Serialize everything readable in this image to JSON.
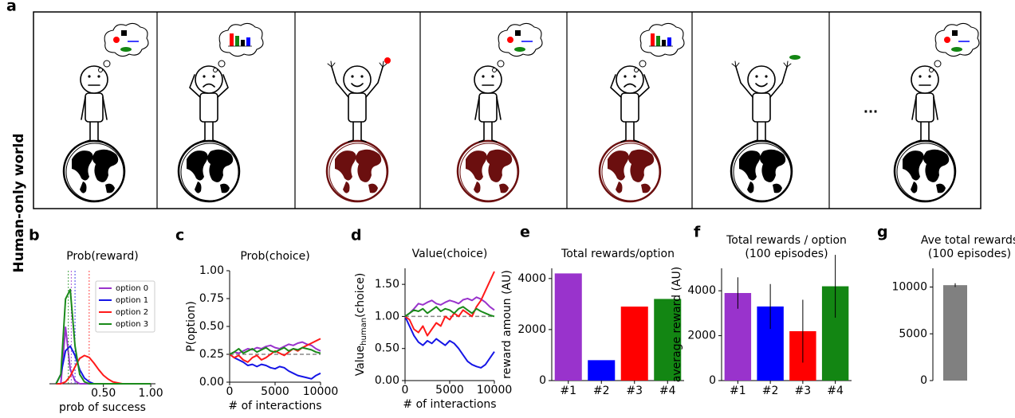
{
  "panel_labels": [
    "a",
    "b",
    "c",
    "d",
    "e",
    "f",
    "g"
  ],
  "side_label": "Human-only world",
  "ellipsis": "...",
  "chart_data": [
    {
      "type": "line",
      "title": "Prob(reward)",
      "xlabel": "prob of success",
      "x": [
        0,
        0.05,
        0.1,
        0.15,
        0.2,
        0.25,
        0.3,
        0.35,
        0.4,
        0.45,
        0.5,
        0.55,
        0.6,
        0.65,
        0.7,
        0.75,
        0.8,
        0.85,
        0.9,
        0.95,
        1.0
      ],
      "xlim": [
        -0.07,
        1.05
      ],
      "ylim": [
        0,
        12
      ],
      "xticks": [
        {
          "value": 0.5,
          "label": "0.50"
        },
        {
          "value": 1.0,
          "label": "1.00"
        }
      ],
      "legend": "upper right",
      "series": [
        {
          "name": "option 0",
          "color": "#9933cc",
          "mean": 0.16,
          "values": [
            0,
            0,
            6,
            1.5,
            0.3,
            0,
            0,
            0,
            0,
            0,
            0,
            0,
            0,
            0,
            0,
            0,
            0,
            0,
            0,
            0,
            0
          ]
        },
        {
          "name": "option 1",
          "color": "#1515e6",
          "mean": 0.2,
          "values": [
            0,
            1,
            3.5,
            4,
            3,
            1.5,
            0.6,
            0.2,
            0,
            0,
            0,
            0,
            0,
            0,
            0,
            0,
            0,
            0,
            0,
            0,
            0
          ]
        },
        {
          "name": "option 2",
          "color": "#ff1a1a",
          "mean": 0.35,
          "values": [
            0,
            0,
            0.2,
            0.8,
            1.8,
            2.7,
            3,
            2.8,
            2.2,
            1.5,
            0.9,
            0.5,
            0.2,
            0.1,
            0,
            0,
            0,
            0,
            0,
            0,
            0
          ]
        },
        {
          "name": "option 3",
          "color": "#1a8a1a",
          "mean": 0.13,
          "values": [
            0,
            1,
            9,
            10,
            4,
            1,
            0.2,
            0,
            0,
            0,
            0,
            0,
            0,
            0,
            0,
            0,
            0,
            0,
            0,
            0,
            0
          ]
        }
      ]
    },
    {
      "type": "line",
      "title": "Prob(choice)",
      "xlabel": "# of interactions",
      "ylabel": "P(option)",
      "x": [
        0,
        500,
        1000,
        1500,
        2000,
        2500,
        3000,
        3500,
        4000,
        4500,
        5000,
        5500,
        6000,
        6500,
        7000,
        7500,
        8000,
        8500,
        9000,
        9500,
        10000
      ],
      "xlim": [
        0,
        10000
      ],
      "ylim": [
        0,
        1
      ],
      "xticks": [
        0,
        5000,
        10000
      ],
      "yticks": [
        {
          "value": 0,
          "label": "0.00"
        },
        0.25,
        {
          "value": 0.5,
          "label": "0.50"
        },
        0.75,
        {
          "value": 1,
          "label": "1.00"
        }
      ],
      "reference_line": 0.25,
      "series": [
        {
          "name": "option 0",
          "color": "#9933cc",
          "values": [
            0.25,
            0.27,
            0.26,
            0.28,
            0.3,
            0.29,
            0.31,
            0.3,
            0.32,
            0.33,
            0.31,
            0.3,
            0.32,
            0.34,
            0.33,
            0.35,
            0.36,
            0.34,
            0.33,
            0.3,
            0.28
          ]
        },
        {
          "name": "option 1",
          "color": "#1515e6",
          "values": [
            0.25,
            0.22,
            0.2,
            0.18,
            0.15,
            0.16,
            0.14,
            0.16,
            0.15,
            0.13,
            0.12,
            0.14,
            0.13,
            0.1,
            0.08,
            0.06,
            0.05,
            0.04,
            0.03,
            0.06,
            0.08
          ]
        },
        {
          "name": "option 2",
          "color": "#ff1a1a",
          "values": [
            0.25,
            0.22,
            0.24,
            0.2,
            0.18,
            0.22,
            0.24,
            0.2,
            0.22,
            0.25,
            0.28,
            0.26,
            0.24,
            0.27,
            0.3,
            0.28,
            0.31,
            0.33,
            0.35,
            0.37,
            0.39
          ]
        },
        {
          "name": "option 3",
          "color": "#1a8a1a",
          "values": [
            0.25,
            0.27,
            0.3,
            0.26,
            0.28,
            0.3,
            0.27,
            0.29,
            0.31,
            0.28,
            0.27,
            0.29,
            0.31,
            0.28,
            0.3,
            0.29,
            0.31,
            0.3,
            0.29,
            0.27,
            0.26
          ]
        }
      ]
    },
    {
      "type": "line",
      "title": "Value(choice)",
      "xlabel": "# of interactions",
      "ylabel": "Value",
      "ylabel_sub": "human",
      "ylabel_suffix": "(choice)",
      "x": [
        0,
        500,
        1000,
        1500,
        2000,
        2500,
        3000,
        3500,
        4000,
        4500,
        5000,
        5500,
        6000,
        6500,
        7000,
        7500,
        8000,
        8500,
        9000,
        9500,
        10000
      ],
      "xlim": [
        0,
        10000
      ],
      "ylim": [
        0,
        1.75
      ],
      "xticks": [
        0,
        5000,
        10000
      ],
      "yticks": [
        {
          "value": 0,
          "label": "0.00"
        },
        {
          "value": 0.5,
          "label": "0.50"
        },
        {
          "value": 1,
          "label": "1.00"
        },
        {
          "value": 1.5,
          "label": "1.50"
        }
      ],
      "reference_line": 1,
      "series": [
        {
          "name": "option 0",
          "color": "#9933cc",
          "values": [
            1.0,
            1.05,
            1.12,
            1.2,
            1.18,
            1.22,
            1.25,
            1.2,
            1.18,
            1.22,
            1.25,
            1.23,
            1.2,
            1.26,
            1.28,
            1.25,
            1.3,
            1.27,
            1.22,
            1.15,
            1.1
          ]
        },
        {
          "name": "option 1",
          "color": "#1515e6",
          "values": [
            1.0,
            0.85,
            0.7,
            0.6,
            0.55,
            0.62,
            0.58,
            0.65,
            0.6,
            0.55,
            0.62,
            0.58,
            0.5,
            0.4,
            0.3,
            0.25,
            0.22,
            0.2,
            0.25,
            0.35,
            0.45
          ]
        },
        {
          "name": "option 2",
          "color": "#ff1a1a",
          "values": [
            1.0,
            0.95,
            0.8,
            0.75,
            0.85,
            0.7,
            0.8,
            0.9,
            0.85,
            1.0,
            0.95,
            1.05,
            1.0,
            1.1,
            1.05,
            1.0,
            1.15,
            1.25,
            1.4,
            1.55,
            1.7
          ]
        },
        {
          "name": "option 3",
          "color": "#1a8a1a",
          "values": [
            1.0,
            1.05,
            1.1,
            1.08,
            1.12,
            1.05,
            1.1,
            1.15,
            1.08,
            1.12,
            1.1,
            1.05,
            1.12,
            1.15,
            1.1,
            1.05,
            1.12,
            1.08,
            1.05,
            1.02,
            1.0
          ]
        }
      ]
    },
    {
      "type": "bar",
      "title": [
        "Total rewards/option"
      ],
      "ylabel": "reward amoun (AU)",
      "categories": [
        "#1",
        "#2",
        "#3",
        "#4"
      ],
      "values": [
        4200,
        800,
        2900,
        3200
      ],
      "colors": [
        "#9933cc",
        "#0000ff",
        "#ff0000",
        "#138613"
      ],
      "ylim": [
        0,
        4400
      ],
      "yticks": [
        0,
        2000,
        4000
      ]
    },
    {
      "type": "bar",
      "title": [
        "Total rewards / option",
        "(100 episodes)"
      ],
      "ylabel": "average reward (AU)",
      "categories": [
        "#1",
        "#2",
        "#3",
        "#4"
      ],
      "values": [
        3900,
        3300,
        2200,
        4200
      ],
      "errors": [
        700,
        1000,
        1400,
        1400
      ],
      "colors": [
        "#9933cc",
        "#0000ff",
        "#ff0000",
        "#138613"
      ],
      "ylim": [
        0,
        5000
      ],
      "yticks": [
        0,
        2000,
        4000
      ]
    },
    {
      "type": "bar",
      "title": [
        "Ave total rewards",
        "(100 episodes)"
      ],
      "categories": [
        null
      ],
      "values": [
        10200
      ],
      "errors": [
        200
      ],
      "colors": [
        "#808080"
      ],
      "ylim": [
        0,
        12000
      ],
      "yticks": [
        0,
        5000,
        10000
      ]
    }
  ]
}
